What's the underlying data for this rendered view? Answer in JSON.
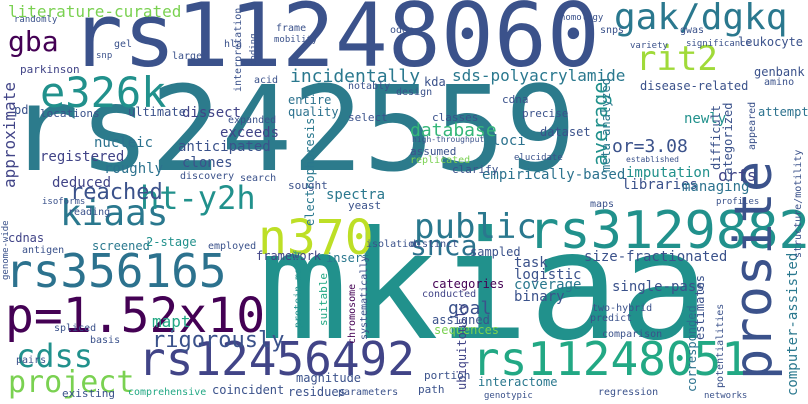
{
  "words": [
    {
      "text": "rs242559",
      "color": "#2c7b8c",
      "vertical": false
    },
    {
      "text": "mkiaa",
      "color": "#21918c",
      "vertical": false
    },
    {
      "text": "rs11248060",
      "color": "#3b528b",
      "vertical": false
    },
    {
      "text": "rs356165",
      "color": "#2c728e",
      "vertical": false
    },
    {
      "text": "rs3129882",
      "color": "#21918c",
      "vertical": false
    },
    {
      "text": "p=1.52x10",
      "color": "#440154",
      "vertical": false
    },
    {
      "text": "rs12456492",
      "color": "#414487",
      "vertical": false
    },
    {
      "text": "rs11248051",
      "color": "#22a884",
      "vertical": false
    },
    {
      "text": "e326k",
      "color": "#21918c",
      "vertical": false
    },
    {
      "text": "prosite",
      "color": "#3b528b",
      "vertical": true
    },
    {
      "text": "n370",
      "color": "#bddf26",
      "vertical": false
    },
    {
      "text": "gak/dgkq",
      "color": "#2a788e",
      "vertical": false
    },
    {
      "text": "rit2",
      "color": "#a0da39",
      "vertical": false
    },
    {
      "text": "kiaas",
      "color": "#2a788e",
      "vertical": false
    },
    {
      "text": "ht-y2h",
      "color": "#21918c",
      "vertical": false
    },
    {
      "text": "gba",
      "color": "#440154",
      "vertical": false
    },
    {
      "text": "public",
      "color": "#2a788e",
      "vertical": false
    },
    {
      "text": "cdss",
      "color": "#21918c",
      "vertical": false
    },
    {
      "text": "project",
      "color": "#7ad151",
      "vertical": false
    },
    {
      "text": "snca",
      "color": "#2c728e",
      "vertical": false
    },
    {
      "text": "reached",
      "color": "#3b528b",
      "vertical": false
    },
    {
      "text": "rigorously",
      "color": "#3b528b",
      "vertical": false
    },
    {
      "text": "incidentally",
      "color": "#2a788e",
      "vertical": false
    },
    {
      "text": "database",
      "color": "#35b779",
      "vertical": false
    },
    {
      "text": "average",
      "color": "#21918c",
      "vertical": true
    },
    {
      "text": "sds-polyacrylamide",
      "color": "#2a788e",
      "vertical": false
    },
    {
      "text": "goal",
      "color": "#3b528b",
      "vertical": false
    },
    {
      "text": "mapt",
      "color": "#22a884",
      "vertical": false
    },
    {
      "text": "public",
      "color": "#2a788e",
      "vertical": false
    },
    {
      "text": "or=3.08",
      "color": "#3b528b",
      "vertical": false
    },
    {
      "text": "orfs",
      "color": "#414487",
      "vertical": false
    },
    {
      "text": "approximate",
      "color": "#414487",
      "vertical": true
    },
    {
      "text": "computer-assisted",
      "color": "#2a788e",
      "vertical": true
    },
    {
      "text": "literature-curated",
      "color": "#7ad151",
      "vertical": false
    },
    {
      "text": "leukocyte",
      "color": "#3b528b",
      "vertical": false
    },
    {
      "text": "genbank",
      "color": "#3b528b",
      "vertical": false
    },
    {
      "text": "attempts",
      "color": "#2c728e",
      "vertical": false
    },
    {
      "text": "newly",
      "color": "#21918c",
      "vertical": false
    },
    {
      "text": "loci",
      "color": "#2c728e",
      "vertical": false
    },
    {
      "text": "disease-related",
      "color": "#3b528b",
      "vertical": false
    },
    {
      "text": "clones",
      "color": "#3b528b",
      "vertical": false
    },
    {
      "text": "exceeds",
      "color": "#414487",
      "vertical": false
    },
    {
      "text": "dissect",
      "color": "#414487",
      "vertical": false
    },
    {
      "text": "task",
      "color": "#3b528b",
      "vertical": false
    },
    {
      "text": "logistic",
      "color": "#3b528b",
      "vertical": false
    },
    {
      "text": "single-pass",
      "color": "#3b528b",
      "vertical": false
    },
    {
      "text": "size-fractionated",
      "color": "#3b528b",
      "vertical": false
    },
    {
      "text": "coverage",
      "color": "#2a788e",
      "vertical": false
    },
    {
      "text": "binary",
      "color": "#3b528b",
      "vertical": false
    },
    {
      "text": "categories",
      "color": "#440154",
      "vertical": false
    },
    {
      "text": "assigned",
      "color": "#3b528b",
      "vertical": false
    },
    {
      "text": "sequences",
      "color": "#7ad151",
      "vertical": false
    },
    {
      "text": "conducted",
      "color": "#414487",
      "vertical": false
    },
    {
      "text": "magnitude",
      "color": "#3b528b",
      "vertical": false
    },
    {
      "text": "interactome",
      "color": "#2a788e",
      "vertical": false
    },
    {
      "text": "residues",
      "color": "#3b528b",
      "vertical": false
    },
    {
      "text": "parameters",
      "color": "#3b528b",
      "vertical": false
    },
    {
      "text": "coincident",
      "color": "#3b528b",
      "vertical": false
    },
    {
      "text": "existing",
      "color": "#3b528b",
      "vertical": false
    },
    {
      "text": "comprehensive",
      "color": "#22a884",
      "vertical": false
    },
    {
      "text": "registered",
      "color": "#414487",
      "vertical": false
    },
    {
      "text": "deduced",
      "color": "#414487",
      "vertical": false
    },
    {
      "text": "roughly",
      "color": "#2c728e",
      "vertical": false
    },
    {
      "text": "nucleic",
      "color": "#2c728e",
      "vertical": false
    },
    {
      "text": "anticipated",
      "color": "#3b528b",
      "vertical": false
    },
    {
      "text": "imputation",
      "color": "#21918c",
      "vertical": false
    },
    {
      "text": "libraries",
      "color": "#3b528b",
      "vertical": false
    },
    {
      "text": "managing",
      "color": "#2c728e",
      "vertical": false
    },
    {
      "text": "empirically-based",
      "color": "#2c728e",
      "vertical": false
    },
    {
      "text": "spectra",
      "color": "#2a788e",
      "vertical": false
    },
    {
      "text": "screened",
      "color": "#2a788e",
      "vertical": false
    },
    {
      "text": "2-stage",
      "color": "#21918c",
      "vertical": false
    },
    {
      "text": "framework",
      "color": "#414487",
      "vertical": false
    },
    {
      "text": "insert",
      "color": "#2a788e",
      "vertical": false
    },
    {
      "text": "cdnas",
      "color": "#414487",
      "vertical": false
    },
    {
      "text": "parkinson",
      "color": "#414487",
      "vertical": false
    },
    {
      "text": "quality",
      "color": "#2c728e",
      "vertical": false
    },
    {
      "text": "entire",
      "color": "#2c728e",
      "vertical": false
    },
    {
      "text": "ultimate",
      "color": "#3b528b",
      "vertical": false
    },
    {
      "text": "locations",
      "color": "#3b528b",
      "vertical": false
    },
    {
      "text": "electrophoresis",
      "color": "#2a788e",
      "vertical": true
    },
    {
      "text": "chromosome",
      "color": "#440154",
      "vertical": true
    },
    {
      "text": "systematically",
      "color": "#3b528b",
      "vertical": true
    },
    {
      "text": "meta-analyzed",
      "color": "#2a788e",
      "vertical": true
    },
    {
      "text": "categorized",
      "color": "#3b528b",
      "vertical": true
    },
    {
      "text": "difficult",
      "color": "#3b528b",
      "vertical": true
    },
    {
      "text": "corresponded",
      "color": "#2c728e",
      "vertical": true
    },
    {
      "text": "estimates",
      "color": "#3b528b",
      "vertical": true
    },
    {
      "text": "suitable",
      "color": "#22a884",
      "vertical": true
    },
    {
      "text": "protein-motif",
      "color": "#21918c",
      "vertical": true
    },
    {
      "text": "ubiquitously",
      "color": "#414487",
      "vertical": true
    },
    {
      "text": "dataset",
      "color": "#3b528b",
      "vertical": false
    },
    {
      "text": "kda",
      "color": "#3b528b",
      "vertical": false
    },
    {
      "text": "cdna",
      "color": "#3b528b",
      "vertical": false
    },
    {
      "text": "classes",
      "color": "#3b528b",
      "vertical": false
    },
    {
      "text": "select",
      "color": "#3b528b",
      "vertical": false
    },
    {
      "text": "sampled",
      "color": "#3b528b",
      "vertical": false
    },
    {
      "text": "replicated",
      "color": "#7ad151",
      "vertical": false
    },
    {
      "text": "assumed",
      "color": "#3b528b",
      "vertical": false
    },
    {
      "text": "clarify",
      "color": "#3b528b",
      "vertical": false
    },
    {
      "text": "sought",
      "color": "#3b528b",
      "vertical": false
    },
    {
      "text": "yeast",
      "color": "#3b528b",
      "vertical": false
    },
    {
      "text": "search",
      "color": "#3b528b",
      "vertical": false
    },
    {
      "text": "expanded",
      "color": "#3b528b",
      "vertical": false
    },
    {
      "text": "discovery",
      "color": "#3b528b",
      "vertical": false
    },
    {
      "text": "reading",
      "color": "#3b528b",
      "vertical": false
    },
    {
      "text": "employed",
      "color": "#3b528b",
      "vertical": false
    },
    {
      "text": "isolation",
      "color": "#3b528b",
      "vertical": false
    },
    {
      "text": "distinct",
      "color": "#3b528b",
      "vertical": false
    },
    {
      "text": "precise",
      "color": "#3b528b",
      "vertical": false
    },
    {
      "text": "maps",
      "color": "#3b528b",
      "vertical": false
    },
    {
      "text": "profiles",
      "color": "#3b528b",
      "vertical": false
    },
    {
      "text": "comparison",
      "color": "#3b528b",
      "vertical": false
    },
    {
      "text": "predict",
      "color": "#3b528b",
      "vertical": false
    },
    {
      "text": "two-hybrid",
      "color": "#3b528b",
      "vertical": false
    },
    {
      "text": "portion",
      "color": "#3b528b",
      "vertical": false
    },
    {
      "text": "path",
      "color": "#3b528b",
      "vertical": false
    },
    {
      "text": "genotypic",
      "color": "#3b528b",
      "vertical": false
    },
    {
      "text": "regression",
      "color": "#3b528b",
      "vertical": false
    },
    {
      "text": "networks",
      "color": "#3b528b",
      "vertical": false
    },
    {
      "text": "spliced",
      "color": "#3b528b",
      "vertical": false
    },
    {
      "text": "pairs",
      "color": "#3b528b",
      "vertical": false
    },
    {
      "text": "basis",
      "color": "#3b528b",
      "vertical": false
    },
    {
      "text": "antigen",
      "color": "#3b528b",
      "vertical": false
    },
    {
      "text": "isoforms",
      "color": "#3b528b",
      "vertical": false
    },
    {
      "text": "gel",
      "color": "#3b528b",
      "vertical": false
    },
    {
      "text": "larger",
      "color": "#3b528b",
      "vertical": false
    },
    {
      "text": "randomly",
      "color": "#3b528b",
      "vertical": false
    },
    {
      "text": "snp",
      "color": "#3b528b",
      "vertical": false
    },
    {
      "text": "acid",
      "color": "#3b528b",
      "vertical": false
    },
    {
      "text": "frame",
      "color": "#3b528b",
      "vertical": false
    },
    {
      "text": "hla",
      "color": "#3b528b",
      "vertical": false
    },
    {
      "text": "odds",
      "color": "#3b528b",
      "vertical": false
    },
    {
      "text": "snps",
      "color": "#3b528b",
      "vertical": false
    },
    {
      "text": "gwas",
      "color": "#3b528b",
      "vertical": false
    },
    {
      "text": "variety",
      "color": "#3b528b",
      "vertical": false
    },
    {
      "text": "amino",
      "color": "#3b528b",
      "vertical": false
    },
    {
      "text": "notably",
      "color": "#3b528b",
      "vertical": false
    },
    {
      "text": "design",
      "color": "#3b528b",
      "vertical": false
    },
    {
      "text": "significance",
      "color": "#3b528b",
      "vertical": false
    },
    {
      "text": "homology",
      "color": "#3b528b",
      "vertical": false
    },
    {
      "text": "coding",
      "color": "#3b528b",
      "vertical": true
    },
    {
      "text": "interpretation",
      "color": "#3b528b",
      "vertical": true
    },
    {
      "text": "mobility",
      "color": "#3b528b",
      "vertical": false
    },
    {
      "text": "pd",
      "color": "#3b528b",
      "vertical": false
    },
    {
      "text": "appeared",
      "color": "#3b528b",
      "vertical": true
    },
    {
      "text": "structure/motility",
      "color": "#3b528b",
      "vertical": true
    },
    {
      "text": "genome-wide",
      "color": "#3b528b",
      "vertical": true
    },
    {
      "text": "high-throughput",
      "color": "#3b528b",
      "vertical": false
    },
    {
      "text": "elucidate",
      "color": "#3b528b",
      "vertical": false
    },
    {
      "text": "potentialities",
      "color": "#3b528b",
      "vertical": true
    },
    {
      "text": "established",
      "color": "#3b528b",
      "vertical": false
    }
  ]
}
